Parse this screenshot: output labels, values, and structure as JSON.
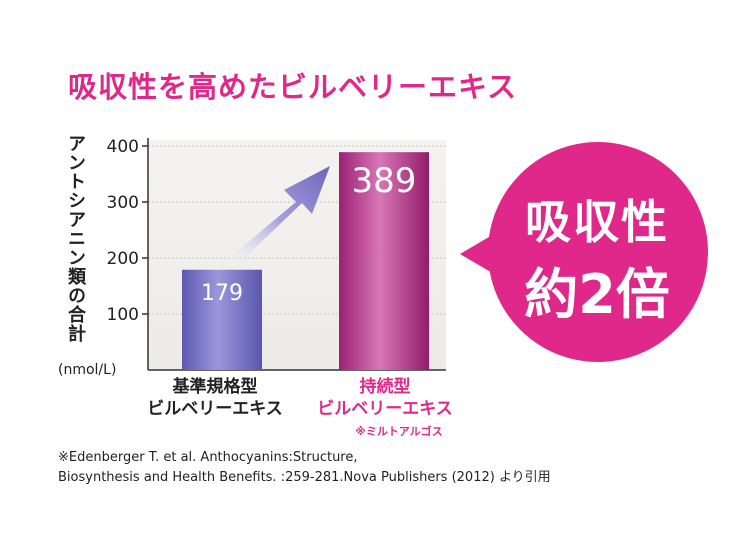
{
  "title": "吸収性を高めたビルベリーエキス",
  "y_axis_label": "アントシアニン類の合計",
  "unit": "(nmol/L)",
  "categories": [
    {
      "line1": "基準規格型",
      "line2": "ビルベリーエキス"
    },
    {
      "line1": "持続型",
      "line2": "ビルベリーエキス",
      "note": "※ミルトアルゴス"
    }
  ],
  "badge": {
    "line1": "吸収性",
    "line2": "約2倍"
  },
  "source": {
    "line1": "※Edenberger T. et al. Anthocyanins:Structure,",
    "line2": "Biosynthesis and Health Benefits. :259-281.Nova Publishers (2012) より引用"
  },
  "colors": {
    "title": "#e0288a",
    "bar1": "#6b67b8",
    "bar2": "#b0287f",
    "badge": "#e0288a",
    "arrow": "#7b73c4"
  },
  "chart_data": {
    "type": "bar",
    "title": "吸収性を高めたビルベリーエキス",
    "ylabel": "アントシアニン類の合計",
    "unit": "(nmol/L)",
    "categories": [
      "基準規格型 ビルベリーエキス",
      "持続型 ビルベリーエキス"
    ],
    "values": [
      179,
      389
    ],
    "value_labels": [
      "179",
      "389"
    ],
    "ylim": [
      0,
      400
    ],
    "yticks": [
      100,
      200,
      300,
      400
    ],
    "ytick_labels": [
      "100",
      "200",
      "300",
      "400"
    ],
    "grid": true
  }
}
